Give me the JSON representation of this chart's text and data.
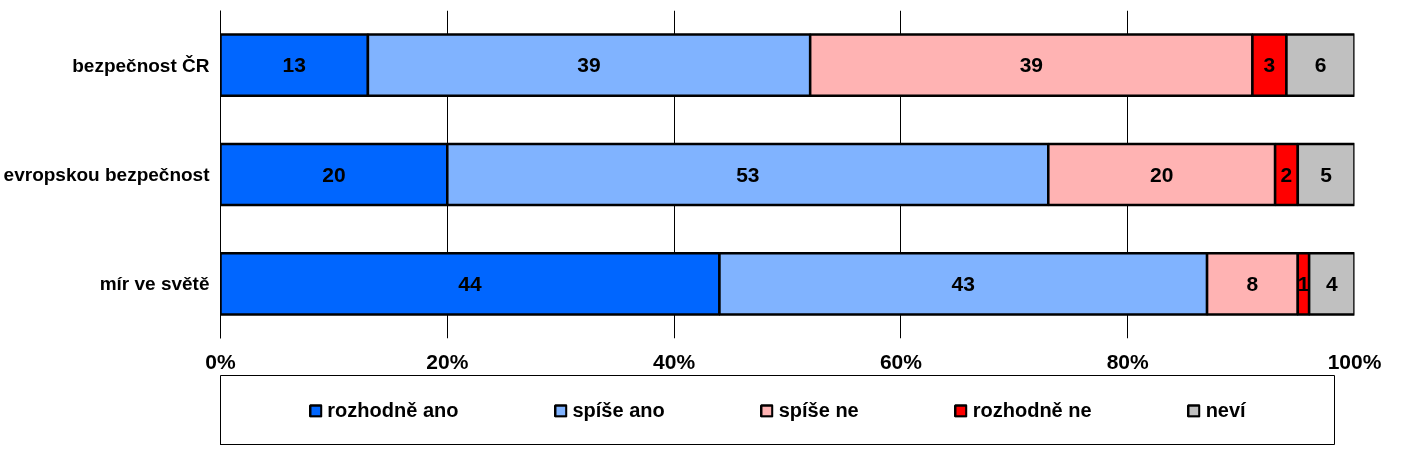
{
  "chart_data": {
    "type": "bar",
    "orientation": "horizontal",
    "stacked": true,
    "categories": [
      "bezpečnost ČR",
      "evropskou bezpečnost",
      "mír ve světě"
    ],
    "series": [
      {
        "name": "rozhodně ano",
        "color": "#0066ff",
        "values": [
          13,
          20,
          44
        ]
      },
      {
        "name": "spíše ano",
        "color": "#80b3ff",
        "values": [
          39,
          53,
          43
        ]
      },
      {
        "name": "spíše ne",
        "color": "#ffb3b3",
        "values": [
          39,
          20,
          8
        ]
      },
      {
        "name": "rozhodně ne",
        "color": "#ff0000",
        "values": [
          3,
          2,
          1
        ]
      },
      {
        "name": "neví",
        "color": "#c0c0c0",
        "values": [
          6,
          5,
          4
        ]
      }
    ],
    "xlim": [
      0,
      100
    ],
    "xticks": [
      {
        "value": 0,
        "label": "0%"
      },
      {
        "value": 20,
        "label": "20%"
      },
      {
        "value": 40,
        "label": "40%"
      },
      {
        "value": 60,
        "label": "60%"
      },
      {
        "value": 80,
        "label": "80%"
      },
      {
        "value": 100,
        "label": "100%"
      }
    ],
    "grid": "x",
    "legend": "bottom",
    "data_labels": true
  }
}
